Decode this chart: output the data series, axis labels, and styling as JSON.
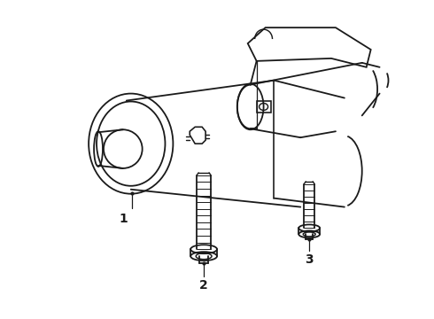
{
  "background_color": "#ffffff",
  "line_color": "#1a1a1a",
  "line_width": 1.3,
  "label_1": "1",
  "label_2": "2",
  "label_3": "3",
  "fig_width": 4.9,
  "fig_height": 3.6,
  "dpi": 100
}
